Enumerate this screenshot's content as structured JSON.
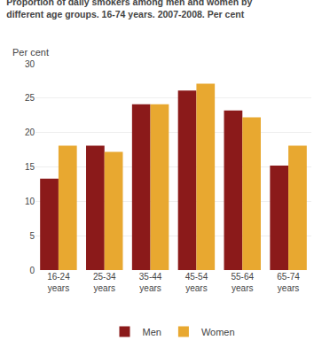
{
  "chart_data": {
    "type": "bar",
    "title": "Proportion of daily smokers among men and women by\ndifferent age groups. 16-74 years. 2007-2008. Per cent",
    "ylabel": "Per cent",
    "categories": [
      "16-24\nyears",
      "25-34\nyears",
      "35-44\nyears",
      "45-54\nyears",
      "55-64\nyears",
      "65-74\nyears"
    ],
    "series": [
      {
        "name": "Men",
        "color": "#8B1A1A",
        "values": [
          13.3,
          18.1,
          24.1,
          26.1,
          23.2,
          15.2
        ]
      },
      {
        "name": "Women",
        "color": "#E8A830",
        "values": [
          18.1,
          17.2,
          24.1,
          27.1,
          22.2,
          18.1
        ]
      }
    ],
    "ylim": [
      0,
      30
    ],
    "yticks": [
      0,
      5,
      10,
      15,
      20,
      25,
      30
    ],
    "grid": true,
    "legend": "bottom"
  }
}
